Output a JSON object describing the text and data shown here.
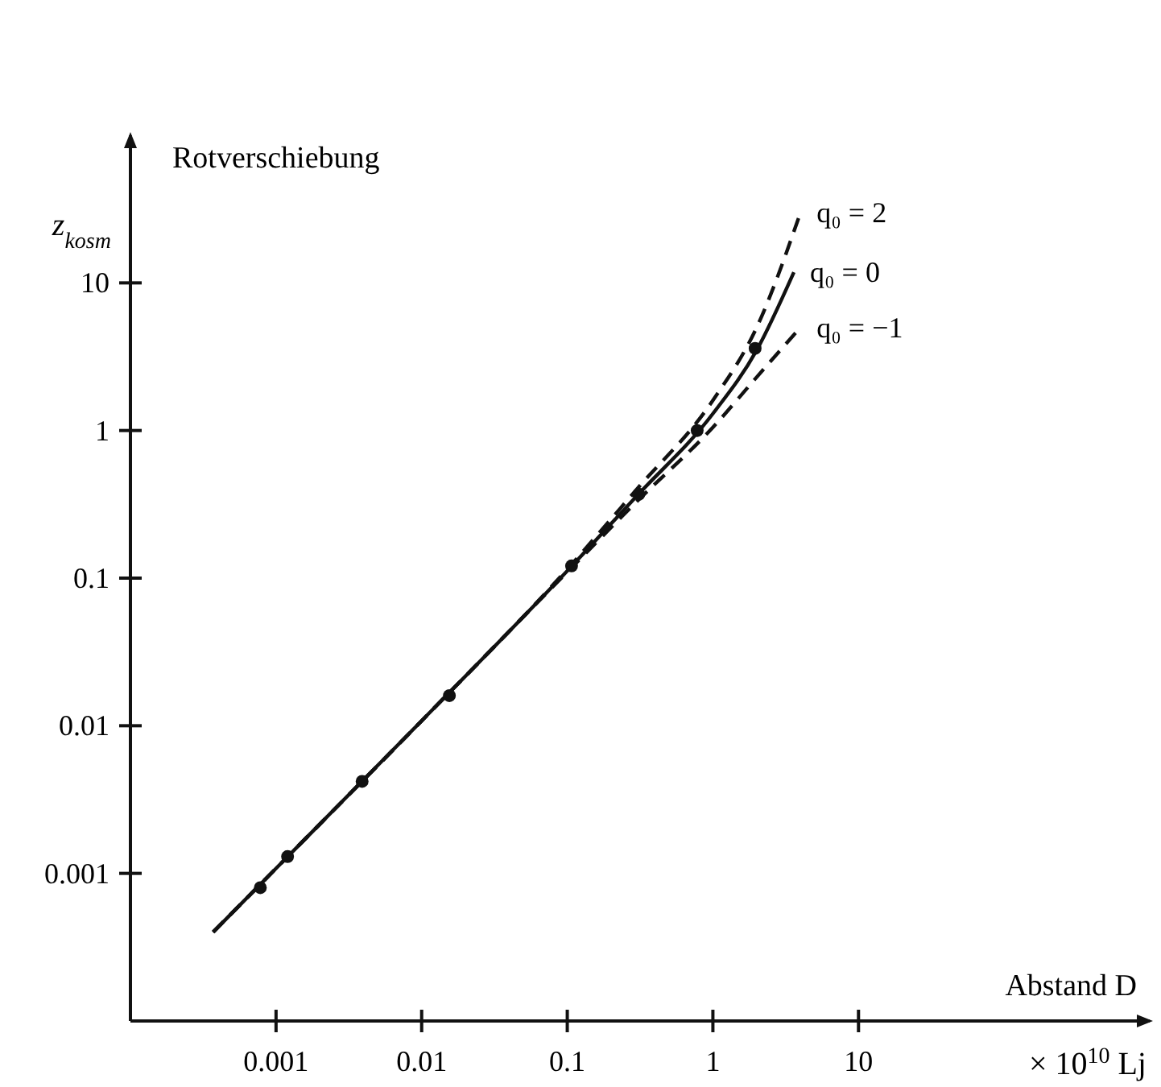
{
  "chart_data": {
    "type": "line",
    "xlabel": "Abstand D",
    "ylabel": "z$_{kosm}$",
    "annotations": [
      "Rotverschiebung",
      "× 10$^{10}$ Lj"
    ],
    "log": "xy",
    "xlim": [
      0.0001,
      1000
    ],
    "ylim": [
      0.0001,
      100
    ],
    "xticks": [
      0.001,
      0.01,
      0.1,
      1,
      10
    ],
    "yticks": [
      0.001,
      0.01,
      0.1,
      1,
      10
    ],
    "series": [
      {
        "name": "q₀ = 2",
        "line_style": "dashed",
        "color": "#111111",
        "x": [
          0.00037,
          0.001,
          0.01,
          0.1,
          0.3,
          1,
          2,
          4
        ],
        "values": [
          0.0004,
          0.00108,
          0.0108,
          0.115,
          0.4,
          1.6,
          5,
          30
        ]
      },
      {
        "name": "q₀ = 0",
        "line_style": "solid",
        "color": "#111111",
        "x": [
          0.00037,
          0.001,
          0.01,
          0.1,
          0.3,
          1,
          2,
          3.6
        ],
        "values": [
          0.0004,
          0.00108,
          0.0108,
          0.112,
          0.36,
          1.3,
          3.5,
          11.8
        ]
      },
      {
        "name": "q₀ = −1",
        "line_style": "dashed",
        "color": "#111111",
        "x": [
          0.00037,
          0.001,
          0.01,
          0.1,
          0.3,
          1,
          2,
          4
        ],
        "values": [
          0.0004,
          0.00108,
          0.0108,
          0.11,
          0.33,
          1.05,
          2.3,
          5
        ]
      },
      {
        "type": "scatter",
        "marker": "circle",
        "color": "#111111",
        "x": [
          0.00078,
          0.0012,
          0.0039,
          0.0155,
          0.107,
          0.31,
          0.78,
          1.95
        ],
        "values": [
          0.0008,
          0.0013,
          0.0042,
          0.016,
          0.121,
          0.37,
          1.0,
          3.6
        ]
      }
    ]
  }
}
